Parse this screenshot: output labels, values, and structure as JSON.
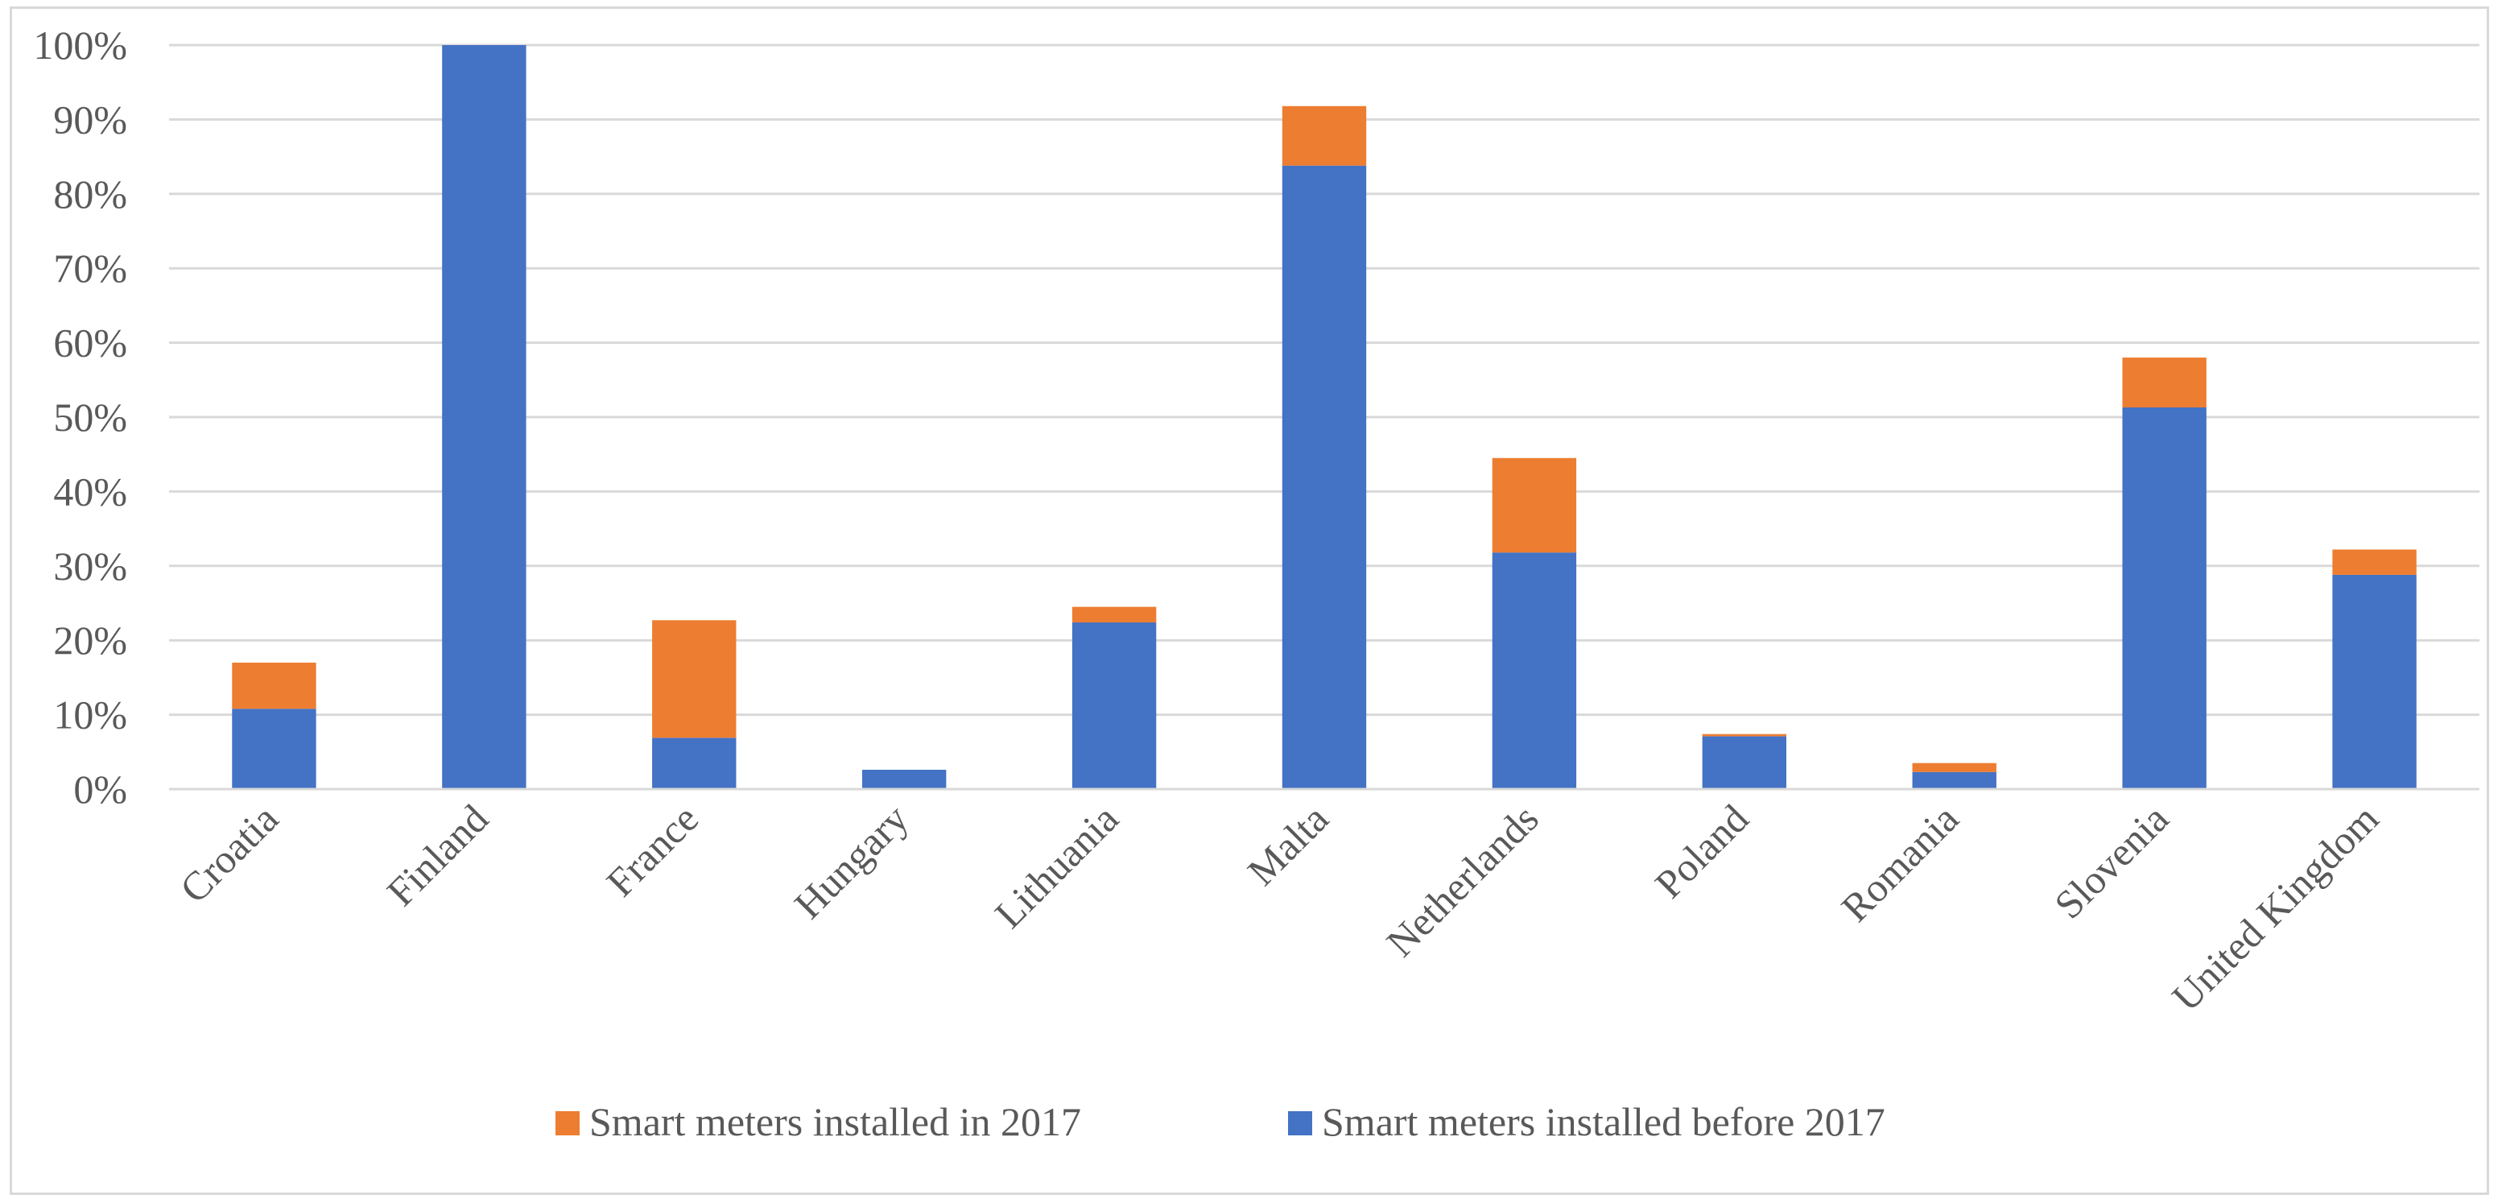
{
  "chart_data": {
    "type": "bar",
    "stacked": true,
    "title": "",
    "xlabel": "",
    "ylabel": "",
    "ylim": [
      0,
      100
    ],
    "yticks": [
      0,
      10,
      20,
      30,
      40,
      50,
      60,
      70,
      80,
      90,
      100
    ],
    "ytick_labels": [
      "0%",
      "10%",
      "20%",
      "30%",
      "40%",
      "50%",
      "60%",
      "70%",
      "80%",
      "90%",
      "100%"
    ],
    "grid": true,
    "legend_position": "bottom",
    "categories": [
      "Croatia",
      "Finland",
      "France",
      "Hungary",
      "Lithuania",
      "Malta",
      "Netherlands",
      "Poland",
      "Romania",
      "Slovenia",
      "United Kingdom"
    ],
    "series": [
      {
        "name": "Smart meters installed before 2017",
        "color": "#4472C4",
        "values": [
          10.8,
          100,
          6.9,
          2.6,
          22.4,
          83.8,
          31.8,
          7.1,
          2.3,
          51.3,
          28.8
        ]
      },
      {
        "name": "Smart meters installed in 2017",
        "color": "#ED7D31",
        "values": [
          6.2,
          0,
          15.8,
          0,
          2.1,
          8.0,
          12.7,
          0.3,
          1.2,
          6.7,
          3.4
        ]
      }
    ],
    "legend": [
      {
        "label": "Smart meters installed in 2017",
        "color": "#ED7D31"
      },
      {
        "label": "Smart meters installed before 2017",
        "color": "#4472C4"
      }
    ]
  }
}
